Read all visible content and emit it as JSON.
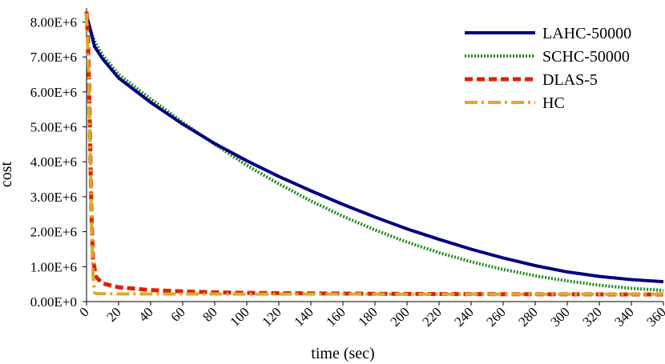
{
  "chart_data": {
    "type": "line",
    "title": "",
    "xlabel": "time (sec)",
    "ylabel": "cost",
    "xlim": [
      0,
      360
    ],
    "ylim": [
      0,
      8400000
    ],
    "x_ticks": [
      0,
      20,
      40,
      60,
      80,
      100,
      120,
      140,
      160,
      180,
      200,
      220,
      240,
      260,
      280,
      300,
      320,
      340,
      360
    ],
    "x_tick_labels": [
      "0",
      "20",
      "40",
      "60",
      "80",
      "100",
      "120",
      "140",
      "160",
      "180",
      "200",
      "220",
      "240",
      "260",
      "280",
      "300",
      "320",
      "340",
      "360"
    ],
    "y_ticks": [
      0,
      1000000,
      2000000,
      3000000,
      4000000,
      5000000,
      6000000,
      7000000,
      8000000
    ],
    "y_tick_labels": [
      "0.00E+0",
      "1.00E+6",
      "2.00E+6",
      "3.00E+6",
      "4.00E+6",
      "5.00E+6",
      "6.00E+6",
      "7.00E+6",
      "8.00E+6"
    ],
    "legend_position": "top-right",
    "grid": false,
    "series": [
      {
        "name": "LAHC-50000",
        "color": "#000080",
        "style": "solid",
        "points": [
          [
            0,
            8200000
          ],
          [
            5,
            7300000
          ],
          [
            10,
            6950000
          ],
          [
            20,
            6400000
          ],
          [
            40,
            5700000
          ],
          [
            60,
            5080000
          ],
          [
            80,
            4520000
          ],
          [
            100,
            4030000
          ],
          [
            120,
            3580000
          ],
          [
            140,
            3170000
          ],
          [
            160,
            2780000
          ],
          [
            180,
            2420000
          ],
          [
            200,
            2080000
          ],
          [
            220,
            1780000
          ],
          [
            240,
            1500000
          ],
          [
            260,
            1250000
          ],
          [
            280,
            1030000
          ],
          [
            300,
            850000
          ],
          [
            320,
            720000
          ],
          [
            340,
            630000
          ],
          [
            360,
            570000
          ]
        ]
      },
      {
        "name": "SCHC-50000",
        "color": "#1a8c1a",
        "style": "dotted",
        "points": [
          [
            0,
            8150000
          ],
          [
            5,
            7450000
          ],
          [
            10,
            7050000
          ],
          [
            20,
            6500000
          ],
          [
            40,
            5800000
          ],
          [
            60,
            5130000
          ],
          [
            80,
            4500000
          ],
          [
            100,
            3900000
          ],
          [
            120,
            3370000
          ],
          [
            140,
            2880000
          ],
          [
            160,
            2440000
          ],
          [
            180,
            2050000
          ],
          [
            200,
            1700000
          ],
          [
            220,
            1400000
          ],
          [
            240,
            1140000
          ],
          [
            260,
            920000
          ],
          [
            280,
            740000
          ],
          [
            300,
            590000
          ],
          [
            320,
            470000
          ],
          [
            340,
            380000
          ],
          [
            360,
            320000
          ]
        ]
      },
      {
        "name": "DLAS-5",
        "color": "#dd2200",
        "style": "dashed",
        "points": [
          [
            0,
            8300000
          ],
          [
            1,
            7400000
          ],
          [
            2,
            5200000
          ],
          [
            3,
            2600000
          ],
          [
            4,
            1200000
          ],
          [
            6,
            700000
          ],
          [
            10,
            520000
          ],
          [
            20,
            410000
          ],
          [
            40,
            330000
          ],
          [
            60,
            290000
          ],
          [
            80,
            265000
          ],
          [
            100,
            250000
          ],
          [
            140,
            235000
          ],
          [
            180,
            225000
          ],
          [
            220,
            218000
          ],
          [
            260,
            212000
          ],
          [
            300,
            208000
          ],
          [
            360,
            205000
          ]
        ]
      },
      {
        "name": "HC",
        "color": "#ddaa22",
        "style": "dash-dot",
        "points": [
          [
            0,
            8250000
          ],
          [
            1,
            7000000
          ],
          [
            2,
            5000000
          ],
          [
            3,
            2500000
          ],
          [
            4,
            800000
          ],
          [
            5,
            260000
          ],
          [
            6,
            230000
          ],
          [
            20,
            220000
          ],
          [
            100,
            215000
          ],
          [
            200,
            212000
          ],
          [
            300,
            210000
          ],
          [
            360,
            210000
          ]
        ]
      }
    ]
  }
}
